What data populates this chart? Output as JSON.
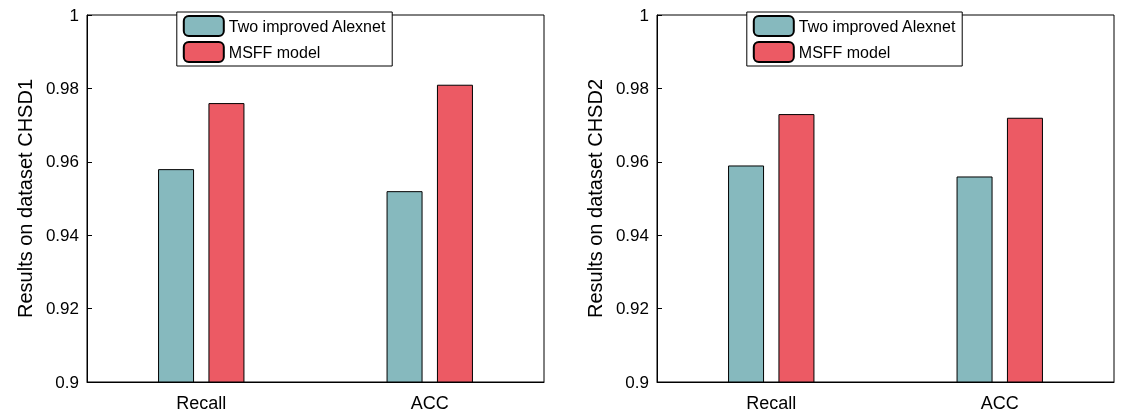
{
  "chart_data": [
    {
      "type": "bar",
      "ylabel": "Results on dataset CHSD1",
      "categories": [
        "Recall",
        "ACC"
      ],
      "series": [
        {
          "name": "Two improved Alexnet",
          "color": "#86b9be",
          "values": [
            0.958,
            0.952
          ]
        },
        {
          "name": "MSFF model",
          "color": "#ec5a64",
          "values": [
            0.976,
            0.981
          ]
        }
      ],
      "ylim": [
        0.9,
        1
      ],
      "yticks": [
        0.9,
        0.92,
        0.94,
        0.96,
        0.98,
        1
      ],
      "grid": false,
      "legend": "top"
    },
    {
      "type": "bar",
      "ylabel": "Results on dataset CHSD2",
      "categories": [
        "Recall",
        "ACC"
      ],
      "series": [
        {
          "name": "Two improved Alexnet",
          "color": "#86b9be",
          "values": [
            0.959,
            0.956
          ]
        },
        {
          "name": "MSFF model",
          "color": "#ec5a64",
          "values": [
            0.973,
            0.972
          ]
        }
      ],
      "ylim": [
        0.9,
        1
      ],
      "yticks": [
        0.9,
        0.92,
        0.94,
        0.96,
        0.98,
        1
      ],
      "grid": false,
      "legend": "top"
    }
  ]
}
